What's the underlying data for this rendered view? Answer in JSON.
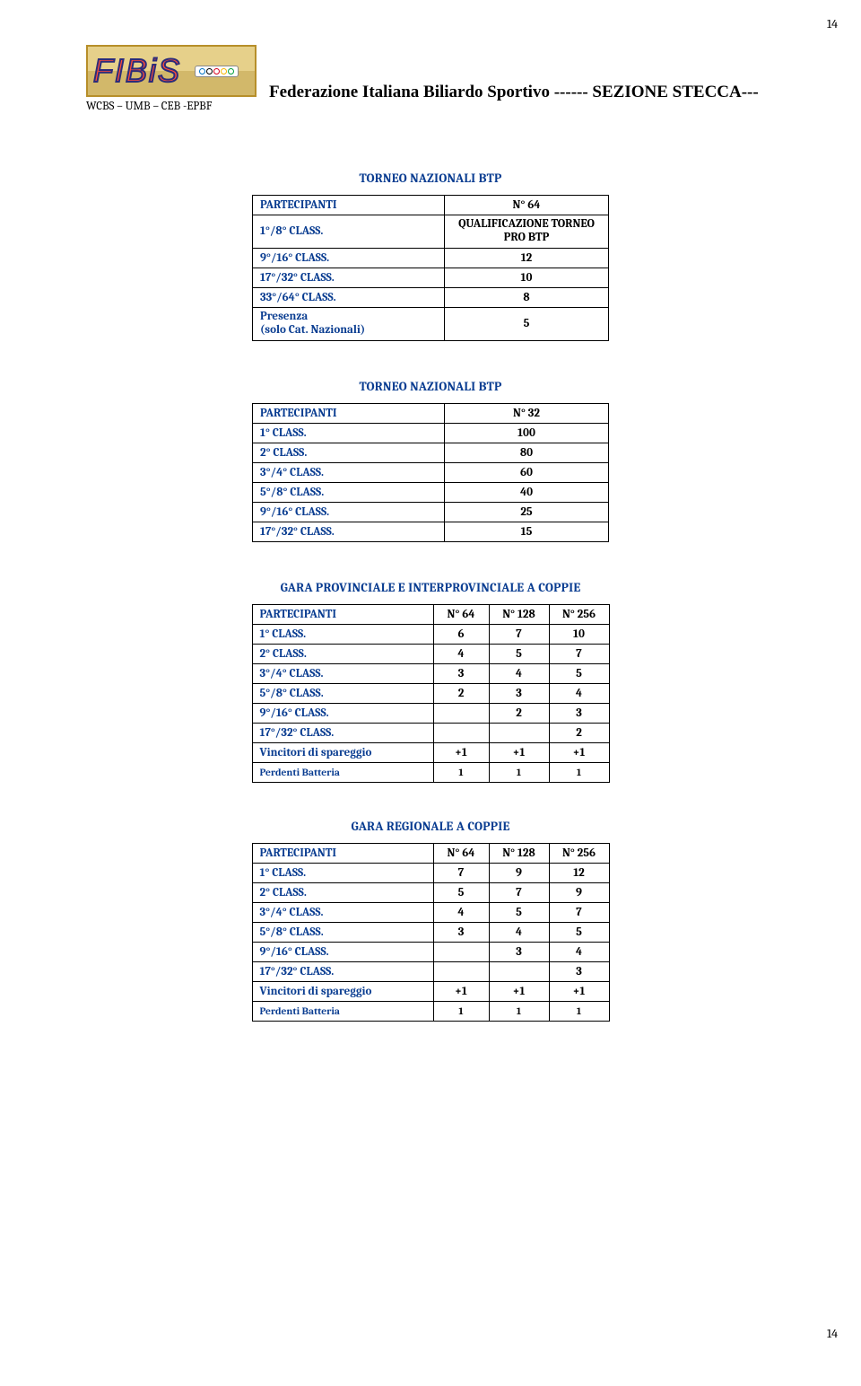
{
  "page_number_top": "14",
  "page_number_bottom": "14",
  "logo_text": "FIBiS",
  "affiliations": "WCBS – UMB – CEB -EPBF",
  "federation_title": "Federazione Italiana Biliardo Sportivo ------ SEZIONE  STECCA---",
  "ring_colors": [
    "#0073c4",
    "#000000",
    "#d6001c",
    "#f7b500",
    "#009e3d"
  ],
  "tables": {
    "t1": {
      "title": "TORNEO NAZIONALI  BTP",
      "rows": [
        {
          "label": "PARTECIPANTI",
          "value": "N° 64",
          "is_header": true
        },
        {
          "label": "1°/8° CLASS.",
          "value": "QUALIFICAZIONE TORNEO PRO BTP",
          "multiline": true
        },
        {
          "label": "9°/16° CLASS.",
          "value": "12"
        },
        {
          "label": "17°/32° CLASS.",
          "value": "10"
        },
        {
          "label": "33°/64° CLASS.",
          "value": "8"
        },
        {
          "label": "Presenza\n(solo Cat. Nazionali)",
          "value": "5",
          "label_multiline": true
        }
      ]
    },
    "t2": {
      "title": "TORNEO NAZIONALI  BTP",
      "rows": [
        {
          "label": "PARTECIPANTI",
          "value": "N° 32",
          "is_header": true
        },
        {
          "label": "1° CLASS.",
          "value": "100"
        },
        {
          "label": "2° CLASS.",
          "value": "80"
        },
        {
          "label": "3°/4° CLASS.",
          "value": "60"
        },
        {
          "label": "5°/8° CLASS.",
          "value": "40"
        },
        {
          "label": "9°/16° CLASS.",
          "value": "25"
        },
        {
          "label": "17°/32° CLASS.",
          "value": "15"
        }
      ]
    },
    "t3": {
      "title": "GARA PROVINCIALE E INTERPROVINCIALE A COPPIE",
      "header": {
        "label": "PARTECIPANTI",
        "c1": "N° 64",
        "c2": "N° 128",
        "c3": "N° 256"
      },
      "rows": [
        {
          "label": "1° CLASS.",
          "c1": "6",
          "c2": "7",
          "c3": "10"
        },
        {
          "label": "2° CLASS.",
          "c1": "4",
          "c2": "5",
          "c3": "7"
        },
        {
          "label": "3°/4° CLASS.",
          "c1": "3",
          "c2": "4",
          "c3": "5"
        },
        {
          "label": "5°/8° CLASS.",
          "c1": "2",
          "c2": "3",
          "c3": "4"
        },
        {
          "label": "9°/16° CLASS.",
          "c1": "",
          "c2": "2",
          "c3": "3"
        },
        {
          "label": "17°/32° CLASS.",
          "c1": "",
          "c2": "",
          "c3": "2"
        },
        {
          "label": "Vincitori di spareggio",
          "c1": "+1",
          "c2": "+1",
          "c3": "+1"
        },
        {
          "label": "Perdenti Batteria",
          "c1": "1",
          "c2": "1",
          "c3": "1",
          "small": true
        }
      ]
    },
    "t4": {
      "title": "GARA REGIONALE A COPPIE",
      "header": {
        "label": "PARTECIPANTI",
        "c1": "N° 64",
        "c2": "N° 128",
        "c3": "N° 256"
      },
      "rows": [
        {
          "label": "1° CLASS.",
          "c1": "7",
          "c2": "9",
          "c3": "12"
        },
        {
          "label": "2° CLASS.",
          "c1": "5",
          "c2": "7",
          "c3": "9"
        },
        {
          "label": "3°/4° CLASS.",
          "c1": "4",
          "c2": "5",
          "c3": "7"
        },
        {
          "label": "5°/8° CLASS.",
          "c1": "3",
          "c2": "4",
          "c3": "5"
        },
        {
          "label": "9°/16° CLASS.",
          "c1": "",
          "c2": "3",
          "c3": "4"
        },
        {
          "label": "17°/32° CLASS.",
          "c1": "",
          "c2": "",
          "c3": "3"
        },
        {
          "label": "Vincitori di spareggio",
          "c1": "+1",
          "c2": "+1",
          "c3": "+1"
        },
        {
          "label": "Perdenti Batteria",
          "c1": "1",
          "c2": "1",
          "c3": "1",
          "small": true
        }
      ]
    }
  }
}
